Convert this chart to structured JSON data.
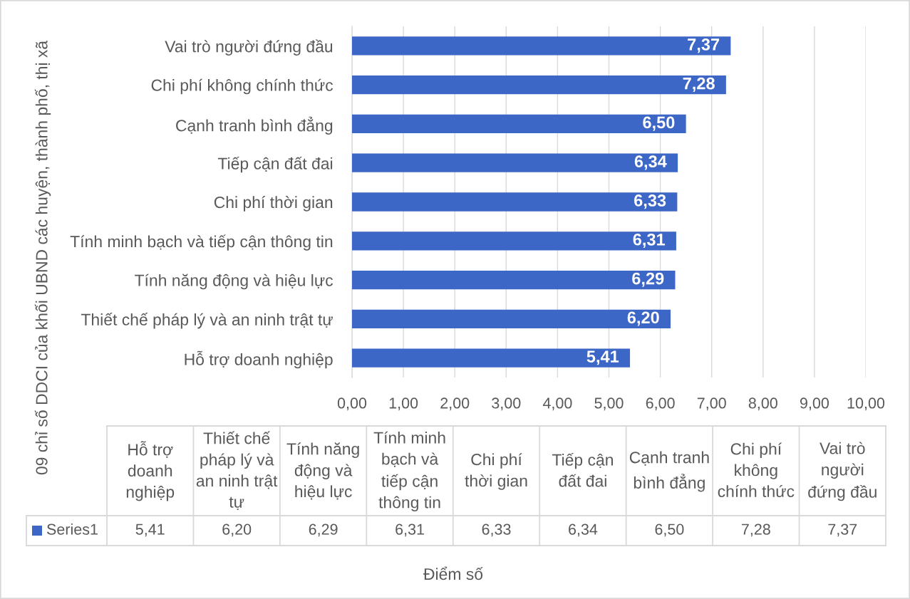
{
  "chart_data": {
    "type": "bar",
    "orientation": "horizontal",
    "ylabel": "09 chỉ số DDCI của khối UBND các huyện, thành phố, thị xã",
    "annotations": [
      "Điểm số"
    ],
    "categories": [
      "Vai trò người đứng đầu",
      "Chi phí không chính thức",
      "Cạnh tranh bình đẳng",
      "Tiếp cận đất đai",
      "Chi phí thời gian",
      "Tính minh bạch và tiếp cận thông tin",
      "Tính năng động và hiệu lực",
      "Thiết chế pháp lý và an ninh trật tự",
      "Hỗ trợ doanh nghiệp"
    ],
    "series": [
      {
        "name": "Series1",
        "color": "#3d67c6",
        "values": [
          7.37,
          7.28,
          6.5,
          6.34,
          6.33,
          6.31,
          6.29,
          6.2,
          5.41
        ],
        "value_labels": [
          "7,37",
          "7,28",
          "6,50",
          "6,34",
          "6,33",
          "6,31",
          "6,29",
          "6,20",
          "5,41"
        ]
      }
    ],
    "xlim": [
      0,
      10
    ],
    "xticks": [
      {
        "value": 0,
        "label": "0,00"
      },
      {
        "value": 1,
        "label": "1,00"
      },
      {
        "value": 2,
        "label": "2,00"
      },
      {
        "value": 3,
        "label": "3,00"
      },
      {
        "value": 4,
        "label": "4,00"
      },
      {
        "value": 5,
        "label": "5,00"
      },
      {
        "value": 6,
        "label": "6,00"
      },
      {
        "value": 7,
        "label": "7,00"
      },
      {
        "value": 8,
        "label": "8,00"
      },
      {
        "value": 9,
        "label": "9,00"
      },
      {
        "value": 10,
        "label": "10,00"
      }
    ],
    "grid": "x"
  }
}
